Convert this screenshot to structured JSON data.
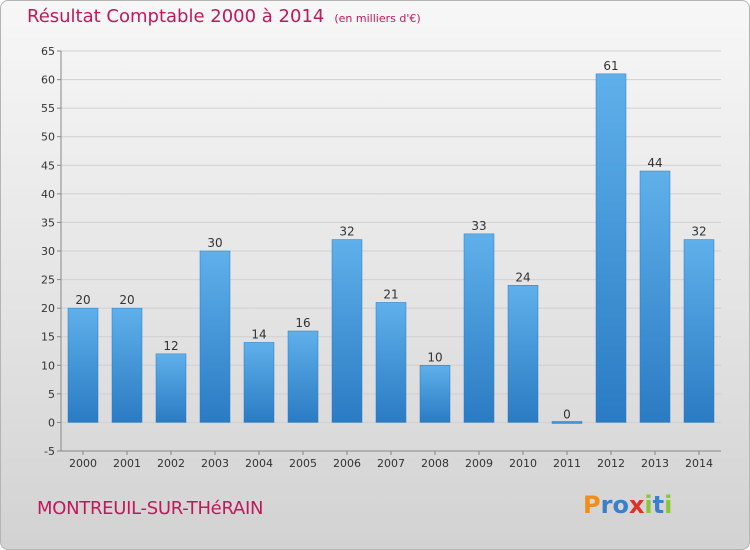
{
  "chart_data": {
    "type": "bar",
    "title": "Résultat Comptable 2000 à 2014",
    "subtitle": "(en milliers d'€)",
    "categories": [
      "2000",
      "2001",
      "2002",
      "2003",
      "2004",
      "2005",
      "2006",
      "2007",
      "2008",
      "2009",
      "2010",
      "2011",
      "2012",
      "2013",
      "2014"
    ],
    "values": [
      20,
      20,
      12,
      30,
      14,
      16,
      32,
      21,
      10,
      33,
      24,
      0,
      61,
      44,
      32
    ],
    "ylim": [
      -5,
      65
    ],
    "yticks": [
      -5,
      0,
      5,
      10,
      15,
      20,
      25,
      30,
      35,
      40,
      45,
      50,
      55,
      60,
      65
    ],
    "xlabel": "",
    "ylabel": "",
    "grid": true,
    "bar_color": "#3a8fd6",
    "colors": {
      "bar_light": "#5fb0ea",
      "bar_dark": "#2a7bc3",
      "grid": "#d0d0d0",
      "axis_text": "#333333",
      "title": "#c2185b"
    }
  },
  "footer": {
    "city": "MONTREUIL-SUR-THéRAIN",
    "brand_letters": [
      "P",
      "r",
      "o",
      "x",
      "i",
      "t",
      "i"
    ],
    "brand_colors": [
      "#f28c1b",
      "#3a7fc8",
      "#3a7fc8",
      "#e0302a",
      "#8cc43a",
      "#3a7fc8",
      "#8cc43a"
    ]
  }
}
